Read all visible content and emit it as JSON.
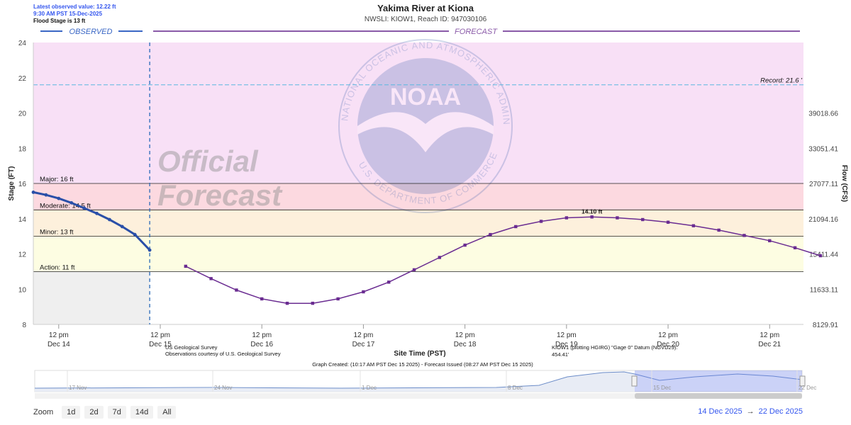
{
  "header": {
    "latest_value": "Latest observed value: 12.22 ft",
    "latest_time": "9:30 AM PST 15-Dec-2025",
    "flood_stage_note": "Flood Stage is 13 ft",
    "title": "Yakima River at Kiona",
    "subtitle": "NWSLI: KIOW1, Reach ID: 947030106"
  },
  "bands": {
    "observed": "OBSERVED",
    "forecast": "FORECAST"
  },
  "watermark": {
    "line1": "Official",
    "line2": "Forecast"
  },
  "noaa_logo": {
    "text": "NOAA",
    "ring_text": "NATIONAL OCEANIC AND ATMOSPHERIC ADMINISTRATION",
    "bottom_text": "U.S. DEPARTMENT OF COMMERCE"
  },
  "footer": {
    "source1": "US Geological Survey",
    "source2": "Observations courtesy of U.S. Geological Survey",
    "datum_line1": "KIOW1 (plotting HGIRG) \"Gage 0\" Datum (NGVD29):",
    "datum_line2": "454.41'",
    "graph_created": "Graph Created: (10:17 AM PST Dec 15 2025) - Forecast Issued (08:27 AM PST Dec 15 2025)"
  },
  "navigator": {
    "labels": [
      "17 Nov",
      "24 Nov",
      "1 Dec",
      "8 Dec",
      "15 Dec",
      "22 Dec"
    ],
    "selection": [
      "2025-12-14",
      "2025-12-22"
    ]
  },
  "zoom": {
    "label": "Zoom",
    "buttons": [
      "1d",
      "2d",
      "7d",
      "14d",
      "All"
    ]
  },
  "range": {
    "from": "14 Dec 2025",
    "to": "22 Dec 2025"
  },
  "colors": {
    "observed": "#2a4fa8",
    "forecast": "#6a2c91",
    "record": "#5bb8e0",
    "major": "#f8e0f6",
    "moderate": "#fcd9e0",
    "minor": "#fdf0dc",
    "action": "#fdfde2"
  },
  "chart_data": {
    "type": "line",
    "ylabel": "Stage (FT)",
    "y2label": "Flow (CFS)",
    "xlabel": "Site Time (PST)",
    "ylim": [
      8,
      24
    ],
    "xlim": [
      "2025-12-14 06:00",
      "2025-12-21 20:00"
    ],
    "yticks": [
      8,
      10,
      12,
      14,
      16,
      18,
      20,
      22,
      24
    ],
    "y2ticks": [
      {
        "stage": 8,
        "label": "8129.91"
      },
      {
        "stage": 10,
        "label": "11633.11"
      },
      {
        "stage": 12,
        "label": "15411.44"
      },
      {
        "stage": 14,
        "label": "21094.16"
      },
      {
        "stage": 16,
        "label": "27077.11"
      },
      {
        "stage": 18,
        "label": "33051.41"
      },
      {
        "stage": 20,
        "label": "39018.66"
      }
    ],
    "xticks": [
      {
        "t": "2025-12-14 12:00",
        "line1": "12 pm",
        "line2": "Dec 14"
      },
      {
        "t": "2025-12-15 12:00",
        "line1": "12 pm",
        "line2": "Dec 15"
      },
      {
        "t": "2025-12-16 12:00",
        "line1": "12 pm",
        "line2": "Dec 16"
      },
      {
        "t": "2025-12-17 12:00",
        "line1": "12 pm",
        "line2": "Dec 17"
      },
      {
        "t": "2025-12-18 12:00",
        "line1": "12 pm",
        "line2": "Dec 18"
      },
      {
        "t": "2025-12-19 12:00",
        "line1": "12 pm",
        "line2": "Dec 19"
      },
      {
        "t": "2025-12-20 12:00",
        "line1": "12 pm",
        "line2": "Dec 20"
      },
      {
        "t": "2025-12-21 12:00",
        "line1": "12 pm",
        "line2": "Dec 21"
      }
    ],
    "now": "2025-12-15 09:30",
    "thresholds": [
      {
        "name": "Major",
        "label": "Major: 16 ft",
        "value": 16
      },
      {
        "name": "Moderate",
        "label": "Moderate: 14.5 ft",
        "value": 14.5
      },
      {
        "name": "Minor",
        "label": "Minor: 13 ft",
        "value": 13
      },
      {
        "name": "Action",
        "label": "Action: 11 ft",
        "value": 11
      }
    ],
    "record": {
      "label": "Record: 21.6 '",
      "value": 21.6
    },
    "peak_label": {
      "t": "2025-12-19 18:00",
      "value": 14.1,
      "label": "14.10 ft"
    },
    "series": [
      {
        "name": "Observed",
        "points": [
          [
            "2025-12-14 06:00",
            15.5
          ],
          [
            "2025-12-14 09:00",
            15.35
          ],
          [
            "2025-12-14 12:00",
            15.15
          ],
          [
            "2025-12-14 15:00",
            14.9
          ],
          [
            "2025-12-14 18:00",
            14.6
          ],
          [
            "2025-12-14 21:00",
            14.3
          ],
          [
            "2025-12-15 00:00",
            13.95
          ],
          [
            "2025-12-15 03:00",
            13.55
          ],
          [
            "2025-12-15 06:00",
            13.1
          ],
          [
            "2025-12-15 09:30",
            12.22
          ]
        ]
      },
      {
        "name": "Forecast",
        "points": [
          [
            "2025-12-15 18:00",
            11.3
          ],
          [
            "2025-12-16 00:00",
            10.6
          ],
          [
            "2025-12-16 06:00",
            9.95
          ],
          [
            "2025-12-16 12:00",
            9.45
          ],
          [
            "2025-12-16 18:00",
            9.2
          ],
          [
            "2025-12-17 00:00",
            9.2
          ],
          [
            "2025-12-17 06:00",
            9.45
          ],
          [
            "2025-12-17 12:00",
            9.85
          ],
          [
            "2025-12-17 18:00",
            10.4
          ],
          [
            "2025-12-18 00:00",
            11.1
          ],
          [
            "2025-12-18 06:00",
            11.8
          ],
          [
            "2025-12-18 12:00",
            12.5
          ],
          [
            "2025-12-18 18:00",
            13.1
          ],
          [
            "2025-12-19 00:00",
            13.55
          ],
          [
            "2025-12-19 06:00",
            13.85
          ],
          [
            "2025-12-19 12:00",
            14.05
          ],
          [
            "2025-12-19 18:00",
            14.1
          ],
          [
            "2025-12-20 00:00",
            14.05
          ],
          [
            "2025-12-20 06:00",
            13.95
          ],
          [
            "2025-12-20 12:00",
            13.8
          ],
          [
            "2025-12-20 18:00",
            13.6
          ],
          [
            "2025-12-21 00:00",
            13.35
          ],
          [
            "2025-12-21 06:00",
            13.05
          ],
          [
            "2025-12-21 12:00",
            12.75
          ],
          [
            "2025-12-21 18:00",
            12.35
          ],
          [
            "2025-12-22 00:00",
            11.9
          ]
        ]
      }
    ]
  }
}
